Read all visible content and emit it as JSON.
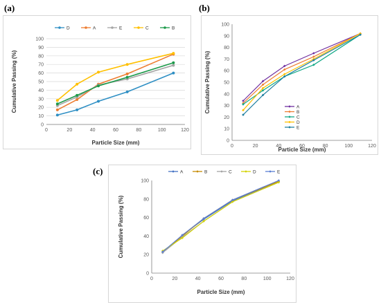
{
  "chart_data": [
    {
      "id": "a",
      "panel_label": "(a)",
      "type": "line",
      "xlabel": "Particle Size (mm)",
      "ylabel": "Cumulative Passing (%)",
      "xlim": [
        0,
        120
      ],
      "ylim": [
        0,
        100
      ],
      "xticks": [
        0,
        20,
        40,
        60,
        80,
        100,
        120
      ],
      "yticks": [
        0,
        10,
        20,
        30,
        40,
        50,
        60,
        70,
        80,
        90,
        100
      ],
      "grid": true,
      "legend_position": "top",
      "x": [
        9.5,
        26.5,
        45,
        70,
        110
      ],
      "series": [
        {
          "name": "D",
          "color": "#2e8fc4",
          "marker": "circle",
          "values": [
            11,
            17,
            27,
            38,
            60
          ]
        },
        {
          "name": "A",
          "color": "#ed7d31",
          "marker": "circle",
          "values": [
            17,
            29,
            47,
            59,
            82
          ]
        },
        {
          "name": "E",
          "color": "#a5a5a5",
          "marker": "circle",
          "values": [
            22,
            32,
            46,
            53,
            69
          ]
        },
        {
          "name": "C",
          "color": "#ffc000",
          "marker": "circle",
          "values": [
            28,
            47,
            61,
            70,
            83
          ]
        },
        {
          "name": "B",
          "color": "#1d9a4a",
          "marker": "circle",
          "values": [
            24,
            34,
            45,
            55,
            72
          ]
        }
      ]
    },
    {
      "id": "b",
      "panel_label": "(b)",
      "type": "line",
      "xlabel": "Particle Size (mm)",
      "ylabel": "Cumulative Passing (%)",
      "xlim": [
        0,
        120
      ],
      "ylim": [
        0,
        100
      ],
      "xticks": [
        0,
        20,
        40,
        60,
        80,
        100,
        120
      ],
      "yticks": [
        0,
        10,
        20,
        30,
        40,
        50,
        60,
        70,
        80,
        90,
        100
      ],
      "grid": false,
      "legend_position": "bottom-right",
      "x": [
        9.5,
        26.5,
        45,
        70,
        110
      ],
      "series": [
        {
          "name": "A",
          "color": "#7030a0",
          "marker": "diamond",
          "values": [
            34,
            51,
            64,
            75,
            92
          ]
        },
        {
          "name": "B",
          "color": "#ed7d31",
          "marker": "diamond",
          "values": [
            32,
            48,
            61,
            72,
            92
          ]
        },
        {
          "name": "C",
          "color": "#12a886",
          "marker": "diamond",
          "values": [
            31,
            43,
            55,
            65,
            91
          ]
        },
        {
          "name": "D",
          "color": "#ffc000",
          "marker": "diamond",
          "values": [
            26,
            45,
            57,
            70,
            92
          ]
        },
        {
          "name": "E",
          "color": "#1f7f9f",
          "marker": "diamond",
          "values": [
            22,
            39,
            55,
            69,
            91
          ]
        }
      ]
    },
    {
      "id": "c",
      "panel_label": "(c)",
      "type": "line",
      "xlabel": "Particle Size (mm)",
      "ylabel": "Cumulative Passing (%)",
      "xlim": [
        0,
        120
      ],
      "ylim": [
        0,
        100
      ],
      "xticks": [
        0,
        20,
        40,
        60,
        80,
        100,
        120
      ],
      "yticks": [
        0,
        20,
        40,
        60,
        80,
        100
      ],
      "grid": false,
      "legend_position": "top",
      "x": [
        9.5,
        26.5,
        45,
        70,
        110
      ],
      "series": [
        {
          "name": "A",
          "color": "#4472c4",
          "marker": "diamond",
          "values": [
            22,
            41,
            58,
            78,
            99
          ]
        },
        {
          "name": "B",
          "color": "#c58b00",
          "marker": "diamond",
          "values": [
            23,
            40,
            59,
            79,
            99
          ]
        },
        {
          "name": "C",
          "color": "#a5a5a5",
          "marker": "diamond",
          "values": [
            22,
            39,
            56,
            77,
            98
          ]
        },
        {
          "name": "D",
          "color": "#d4d400",
          "marker": "diamond",
          "values": [
            24,
            38,
            56,
            77,
            98
          ]
        },
        {
          "name": "E",
          "color": "#5b7fd4",
          "marker": "diamond",
          "values": [
            23,
            41,
            59,
            79,
            100
          ]
        }
      ]
    }
  ]
}
